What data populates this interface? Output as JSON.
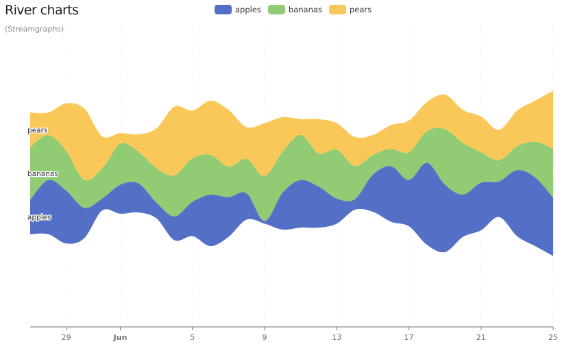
{
  "title": "River charts",
  "subtitle": "(Streamgraphs)",
  "legend": [
    {
      "label": "apples",
      "color": "#5470c6"
    },
    {
      "label": "bananas",
      "color": "#91cc75"
    },
    {
      "label": "pears",
      "color": "#fac858"
    }
  ],
  "chart_data": {
    "type": "area",
    "subtype": "streamgraph",
    "x": [
      "2023-05-27",
      "2023-05-28",
      "2023-05-29",
      "2023-05-30",
      "2023-05-31",
      "2023-06-01",
      "2023-06-02",
      "2023-06-03",
      "2023-06-04",
      "2023-06-05",
      "2023-06-06",
      "2023-06-07",
      "2023-06-08",
      "2023-06-09",
      "2023-06-10",
      "2023-06-11",
      "2023-06-12",
      "2023-06-13",
      "2023-06-14",
      "2023-06-15",
      "2023-06-16",
      "2023-06-17",
      "2023-06-18",
      "2023-06-19",
      "2023-06-20",
      "2023-06-21",
      "2023-06-22",
      "2023-06-23",
      "2023-06-24",
      "2023-06-25"
    ],
    "x_ticks": [
      "29",
      "Jun",
      "5",
      "9",
      "13",
      "17",
      "21",
      "25"
    ],
    "series": [
      {
        "name": "apples",
        "color": "#5470c6",
        "values": [
          26,
          41,
          40,
          23,
          9,
          22,
          22,
          12,
          18,
          26,
          39,
          30,
          20,
          2,
          28,
          36,
          31,
          19,
          8,
          28,
          42,
          35,
          62,
          51,
          32,
          36,
          27,
          50,
          52,
          44
        ]
      },
      {
        "name": "bananas",
        "color": "#91cc75",
        "values": [
          40,
          34,
          30,
          21,
          23,
          31,
          24,
          26,
          31,
          33,
          30,
          23,
          26,
          34,
          31,
          34,
          25,
          37,
          25,
          15,
          13,
          21,
          24,
          42,
          39,
          23,
          16,
          18,
          27,
          37
        ]
      },
      {
        "name": "pears",
        "color": "#fac858",
        "values": [
          26,
          17,
          36,
          54,
          24,
          8,
          13,
          30,
          52,
          36,
          41,
          43,
          24,
          40,
          26,
          12,
          26,
          20,
          22,
          15,
          18,
          24,
          22,
          26,
          25,
          27,
          23,
          27,
          31,
          44
        ]
      }
    ],
    "grid": false,
    "legend_position": "top-center"
  }
}
